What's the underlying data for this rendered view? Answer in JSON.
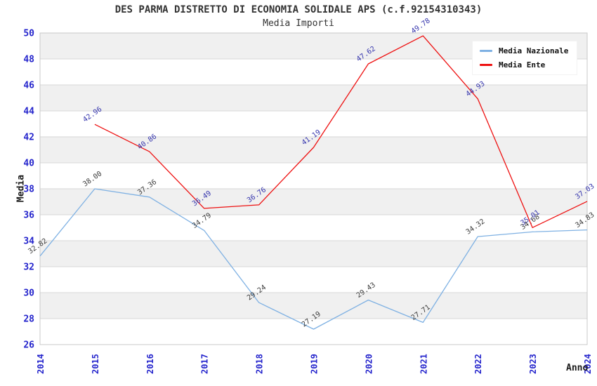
{
  "chart_data": {
    "type": "line",
    "title": "DES PARMA DISTRETTO DI ECONOMIA SOLIDALE APS (c.f.92154310343)",
    "subtitle": "Media Importi",
    "xlabel": "Anno",
    "ylabel": "Media",
    "x": [
      "2014",
      "2015",
      "2016",
      "2017",
      "2018",
      "2019",
      "2020",
      "2021",
      "2022",
      "2023",
      "2024"
    ],
    "ylim": [
      26,
      50
    ],
    "ytick_step": 2,
    "grid": "horizontal-bands-alternating",
    "legend_position": "top-right",
    "series": [
      {
        "name": "Media Nazionale",
        "color": "#7FB1E3",
        "label_color": "#3d3d3d",
        "values": [
          32.82,
          38.0,
          37.36,
          34.79,
          29.24,
          27.19,
          29.43,
          27.71,
          34.32,
          34.68,
          34.83
        ]
      },
      {
        "name": "Media Ente",
        "color": "#EE1111",
        "label_color": "#3535AD",
        "values": [
          null,
          42.96,
          40.86,
          36.49,
          36.76,
          41.19,
          47.62,
          49.78,
          44.93,
          35.01,
          37.03
        ]
      }
    ],
    "style": {
      "band_color": "#f0f0f0",
      "gridline_color": "#d7d7d7",
      "plot_border_color": "#c9c9c9",
      "tick_label_color": "#2424CC",
      "axis_title_color": "#1a1a1a",
      "point_label_rotation_deg": -35
    }
  }
}
